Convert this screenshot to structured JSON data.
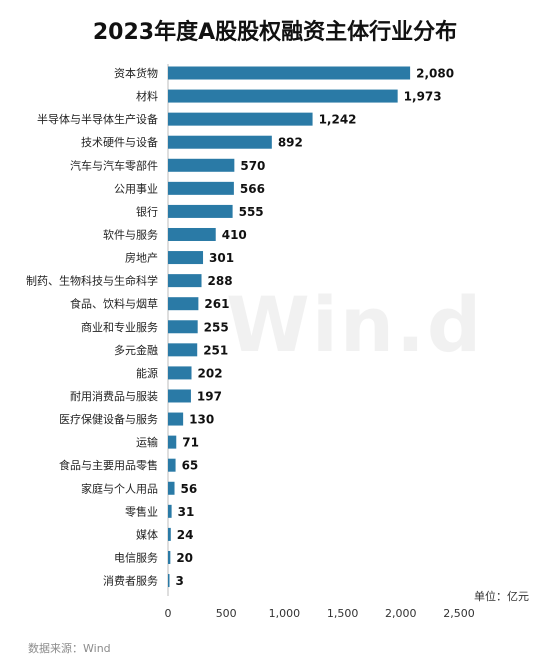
{
  "chart_data": {
    "type": "bar",
    "orientation": "horizontal",
    "title": "2023年度A股股权融资主体行业分布",
    "categories": [
      "资本货物",
      "材料",
      "半导体与半导体生产设备",
      "技术硬件与设备",
      "汽车与汽车零部件",
      "公用事业",
      "银行",
      "软件与服务",
      "房地产",
      "制药、生物科技与生命科学",
      "食品、饮料与烟草",
      "商业和专业服务",
      "多元金融",
      "能源",
      "耐用消费品与服装",
      "医疗保健设备与服务",
      "运输",
      "食品与主要用品零售",
      "家庭与个人用品",
      "零售业",
      "媒体",
      "电信服务",
      "消费者服务"
    ],
    "values": [
      2080,
      1973,
      1242,
      892,
      570,
      566,
      555,
      410,
      301,
      288,
      261,
      255,
      251,
      202,
      197,
      130,
      71,
      65,
      56,
      31,
      24,
      20,
      3
    ],
    "value_labels": [
      "2,080",
      "1,973",
      "1,242",
      "892",
      "570",
      "566",
      "555",
      "410",
      "301",
      "288",
      "261",
      "255",
      "251",
      "202",
      "197",
      "130",
      "71",
      "65",
      "56",
      "31",
      "24",
      "20",
      "3"
    ],
    "xlim": [
      0,
      2500
    ],
    "x_ticks": [
      0,
      500,
      1000,
      1500,
      2000,
      2500
    ],
    "x_tick_labels": [
      "0",
      "500",
      "1,000",
      "1,500",
      "2,000",
      "2,500"
    ],
    "grid": false,
    "legend": "none",
    "bar_color": "#2a7aa6",
    "unit_label": "单位：亿元"
  },
  "source": "数据来源：Wind",
  "watermark": "Win.d"
}
